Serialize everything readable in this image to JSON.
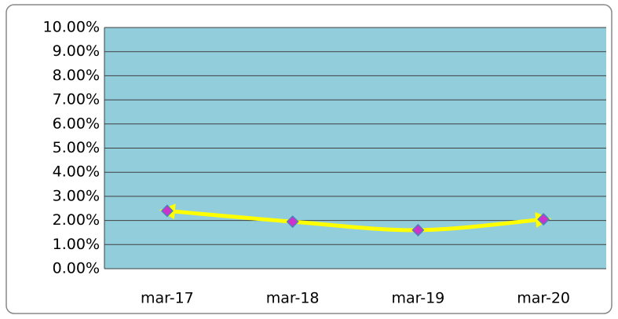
{
  "chart_data": {
    "type": "line",
    "categories": [
      "mar-17",
      "mar-18",
      "mar-19",
      "mar-20"
    ],
    "series": [
      {
        "color": "#ffff00",
        "marker_color": "#cc33cc",
        "values": [
          2.4,
          1.95,
          1.6,
          2.05
        ]
      }
    ],
    "ylim": [
      0,
      10
    ],
    "yticks": [
      {
        "value": 0,
        "label": "0.00%"
      },
      {
        "value": 1,
        "label": "1.00%"
      },
      {
        "value": 2,
        "label": "2.00%"
      },
      {
        "value": 3,
        "label": "3.00%"
      },
      {
        "value": 4,
        "label": "4.00%"
      },
      {
        "value": 5,
        "label": "5.00%"
      },
      {
        "value": 6,
        "label": "6.00%"
      },
      {
        "value": 7,
        "label": "7.00%"
      },
      {
        "value": 8,
        "label": "8.00%"
      },
      {
        "value": 9,
        "label": "9.00%"
      },
      {
        "value": 10,
        "label": "10.00%"
      }
    ],
    "grid": true,
    "plot_background": "#92cddc"
  }
}
